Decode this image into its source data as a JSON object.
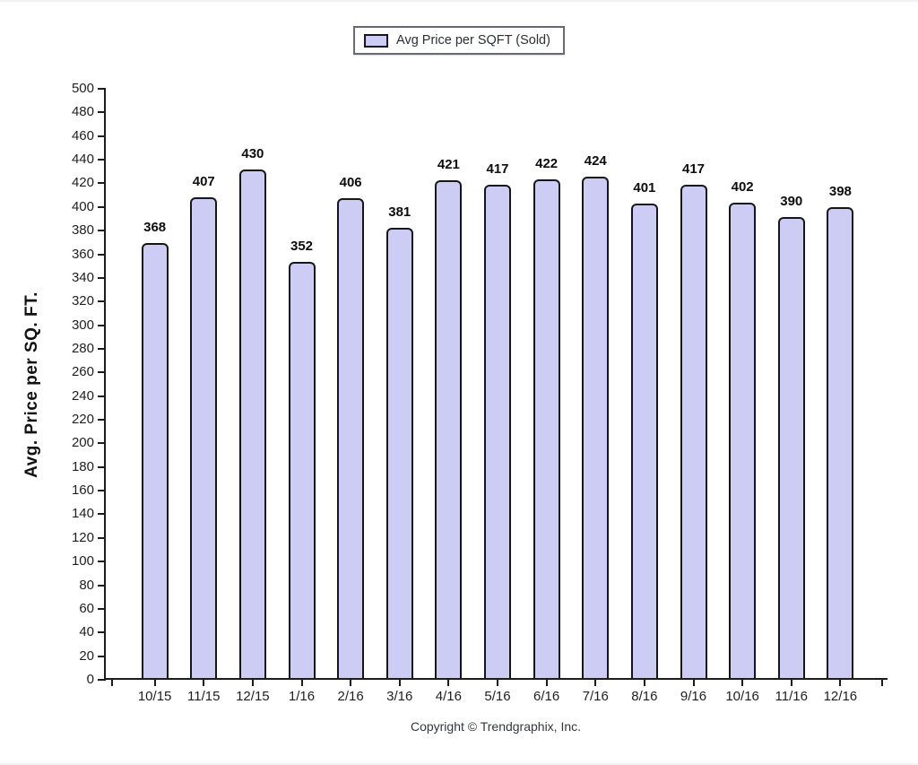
{
  "legend": {
    "label": "Avg Price per SQFT (Sold)"
  },
  "chart_data": {
    "type": "bar",
    "title": "",
    "series_name": "Avg Price per SQFT (Sold)",
    "categories": [
      "10/15",
      "11/15",
      "12/15",
      "1/16",
      "2/16",
      "3/16",
      "4/16",
      "5/16",
      "6/16",
      "7/16",
      "8/16",
      "9/16",
      "10/16",
      "11/16",
      "12/16"
    ],
    "values": [
      368,
      407,
      430,
      352,
      406,
      381,
      421,
      417,
      422,
      424,
      401,
      417,
      402,
      390,
      398
    ],
    "xlabel": "",
    "ylabel": "Avg. Price per SQ. FT.",
    "ylim": [
      0,
      500
    ],
    "ytick_step": 20,
    "grid": false,
    "value_labels": true,
    "legend_position": "top-center",
    "bar_fill": "#ccccf4",
    "bar_border": "#16161a",
    "axis_color": "#1c1c1c"
  },
  "footer": {
    "copyright": "Copyright © Trendgraphix, Inc."
  }
}
